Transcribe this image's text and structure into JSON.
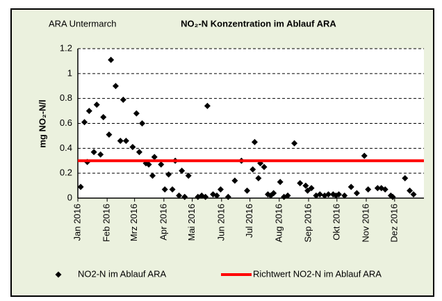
{
  "chart_data": {
    "type": "scatter",
    "title": "NO₂-N Konzentration im Ablauf ARA",
    "annotation": "ARA Untermarch",
    "y_label": "mg NO₂-N/l",
    "xlim": [
      1,
      367
    ],
    "ylim": [
      0,
      1.2
    ],
    "yticks": [
      0,
      0.2,
      0.4,
      0.6,
      0.8,
      1,
      1.2
    ],
    "xticks": [
      {
        "value": 1,
        "label": "Jan 2016"
      },
      {
        "value": 32,
        "label": "Feb 2016"
      },
      {
        "value": 61,
        "label": "Mrz 2016"
      },
      {
        "value": 92,
        "label": "Apr 2016"
      },
      {
        "value": 122,
        "label": "Mai 2016"
      },
      {
        "value": 153,
        "label": "Jun 2016"
      },
      {
        "value": 183,
        "label": "Jul 2016"
      },
      {
        "value": 214,
        "label": "Aug 2016"
      },
      {
        "value": 245,
        "label": "Sep 2016"
      },
      {
        "value": 275,
        "label": "Okt 2016"
      },
      {
        "value": 306,
        "label": "Nov 2016"
      },
      {
        "value": 336,
        "label": "Dez 2016"
      }
    ],
    "grid": true,
    "series": [
      {
        "name": "NO2-N im Ablauf ARA",
        "color": "#000000",
        "x": [
          4,
          8,
          11,
          13,
          18,
          21,
          25,
          28,
          34,
          36,
          41,
          46,
          49,
          52,
          59,
          63,
          66,
          69,
          73,
          76,
          80,
          82,
          89,
          93,
          97,
          101,
          104,
          108,
          111,
          114,
          118,
          128,
          132,
          136,
          138,
          144,
          148,
          152,
          160,
          167,
          174,
          180,
          186,
          188,
          192,
          194,
          198,
          202,
          205,
          208,
          215,
          219,
          223,
          230,
          236,
          242,
          244,
          248,
          253,
          257,
          262,
          266,
          271,
          274,
          277,
          283,
          290,
          296,
          304,
          308,
          318,
          322,
          326,
          332,
          334,
          347,
          352,
          356
        ],
        "values": [
          0.09,
          0.61,
          0.29,
          0.7,
          0.37,
          0.75,
          0.35,
          0.65,
          0.51,
          1.11,
          0.9,
          0.46,
          0.79,
          0.46,
          0.41,
          0.68,
          0.37,
          0.6,
          0.28,
          0.27,
          0.18,
          0.33,
          0.27,
          0.07,
          0.19,
          0.07,
          0.3,
          0.02,
          0.22,
          0.01,
          0.18,
          0.01,
          0.02,
          0.01,
          0.74,
          0.03,
          0.02,
          0.07,
          0.01,
          0.14,
          0.3,
          0.06,
          0.23,
          0.45,
          0.16,
          0.28,
          0.25,
          0.03,
          0.02,
          0.04,
          0.13,
          0.01,
          0.02,
          0.44,
          0.12,
          0.1,
          0.06,
          0.08,
          0.02,
          0.03,
          0.02,
          0.03,
          0.03,
          0.02,
          0.03,
          0.02,
          0.09,
          0.04,
          0.34,
          0.07,
          0.08,
          0.08,
          0.07,
          0.02,
          0.01,
          0.16,
          0.06,
          0.03
        ]
      },
      {
        "name": "Richtwert NO2-N im Ablauf ARA",
        "color": "#ff0000",
        "x": [
          1,
          367
        ],
        "values": [
          0.3,
          0.3
        ]
      }
    ]
  }
}
